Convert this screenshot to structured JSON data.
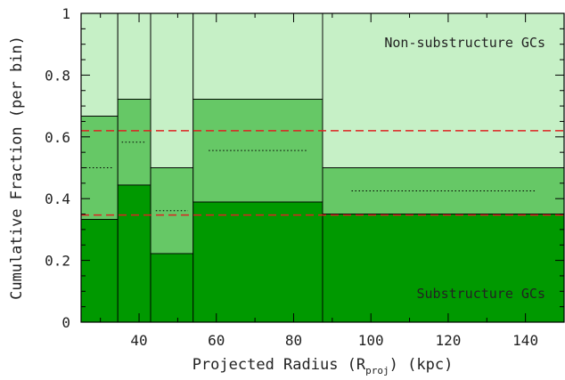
{
  "chart_data": {
    "type": "bar",
    "xlabel": "Projected Radius (R",
    "xlabel_sub": "proj",
    "xlabel_suffix": ") (kpc)",
    "ylabel": "Cumulative Fraction (per bin)",
    "xlim": [
      25,
      150
    ],
    "ylim": [
      0,
      1
    ],
    "x_ticks": [
      40,
      60,
      80,
      100,
      120,
      140
    ],
    "y_ticks": [
      0,
      0.2,
      0.4,
      0.6,
      0.8,
      1
    ],
    "y_tick_labels": [
      "0",
      "0.2",
      "0.4",
      "0.6",
      "0.8",
      "1"
    ],
    "bins": [
      {
        "x0": 25,
        "x1": 34.5,
        "low": 0.333,
        "mid": 0.5,
        "high": 0.667
      },
      {
        "x0": 34.5,
        "x1": 43,
        "low": 0.444,
        "mid": 0.583,
        "high": 0.722
      },
      {
        "x0": 43,
        "x1": 54,
        "low": 0.222,
        "mid": 0.361,
        "high": 0.5
      },
      {
        "x0": 54,
        "x1": 87.5,
        "low": 0.389,
        "mid": 0.556,
        "high": 0.722
      },
      {
        "x0": 87.5,
        "x1": 150,
        "low": 0.35,
        "mid": 0.425,
        "high": 0.5
      }
    ],
    "reference_lines": [
      0.347,
      0.62
    ],
    "annotations": {
      "top": "Non-substructure GCs",
      "bottom": "Substructure GCs"
    },
    "colors": {
      "dark": "#009900",
      "mid": "#66c866",
      "light": "#c6f0c6",
      "reference": "#dd2222"
    }
  }
}
